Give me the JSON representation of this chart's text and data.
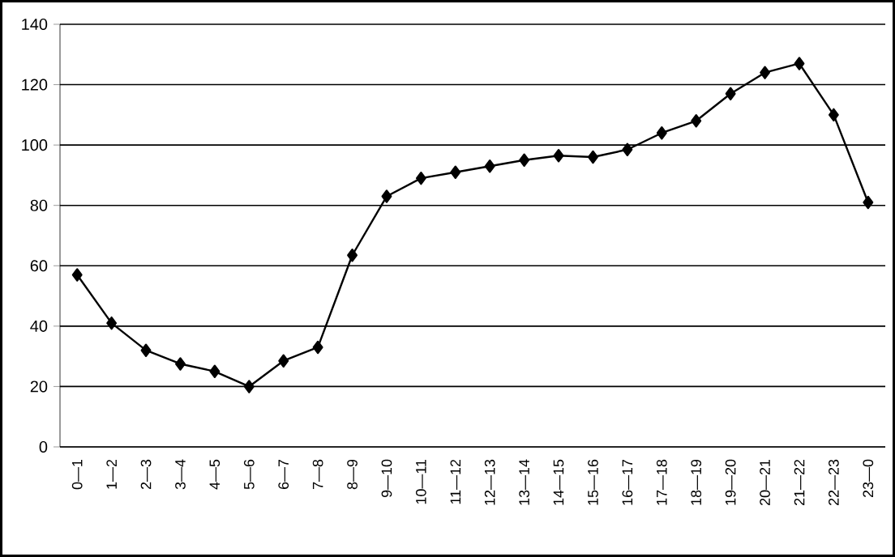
{
  "chart_data": {
    "type": "line",
    "categories": [
      "0—1",
      "1—2",
      "2—3",
      "3—4",
      "4—5",
      "5—6",
      "6—7",
      "7—8",
      "8—9",
      "9—10",
      "10—11",
      "11—12",
      "12—13",
      "13—14",
      "14—15",
      "15—16",
      "16—17",
      "17—18",
      "18—19",
      "19—20",
      "20—21",
      "21—22",
      "22—23",
      "23—0"
    ],
    "series": [
      {
        "color": "#000000",
        "values": [
          57,
          41,
          32,
          27.5,
          25,
          20,
          28.5,
          33,
          63.5,
          83,
          89,
          91,
          93,
          95,
          96.5,
          96,
          98.5,
          104,
          108,
          117,
          124,
          127,
          110,
          81
        ]
      }
    ],
    "ylim": [
      0,
      140
    ],
    "yticks": [
      0,
      20,
      40,
      60,
      80,
      100,
      120,
      140
    ],
    "grid": "y",
    "marker": "diamond",
    "line_style": "solid"
  }
}
